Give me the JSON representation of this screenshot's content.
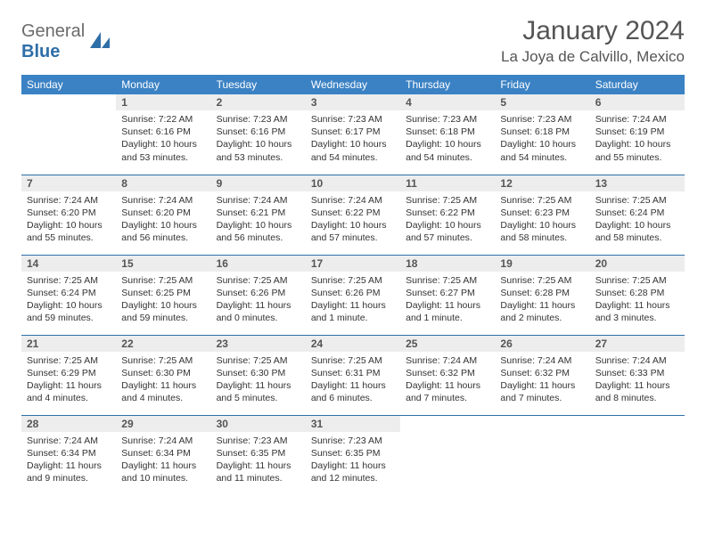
{
  "logo": {
    "text1": "General",
    "text2": "Blue"
  },
  "title": "January 2024",
  "location": "La Joya de Calvillo, Mexico",
  "colors": {
    "header_blue": "#3b82c4",
    "rule_blue": "#2f6fa8",
    "daynum_bg": "#ededed",
    "text_gray": "#555555",
    "logo_gray": "#6b6b6b"
  },
  "weekdays": [
    "Sunday",
    "Monday",
    "Tuesday",
    "Wednesday",
    "Thursday",
    "Friday",
    "Saturday"
  ],
  "weeks": [
    [
      null,
      {
        "n": "1",
        "sunrise": "7:22 AM",
        "sunset": "6:16 PM",
        "daylight": "10 hours and 53 minutes."
      },
      {
        "n": "2",
        "sunrise": "7:23 AM",
        "sunset": "6:16 PM",
        "daylight": "10 hours and 53 minutes."
      },
      {
        "n": "3",
        "sunrise": "7:23 AM",
        "sunset": "6:17 PM",
        "daylight": "10 hours and 54 minutes."
      },
      {
        "n": "4",
        "sunrise": "7:23 AM",
        "sunset": "6:18 PM",
        "daylight": "10 hours and 54 minutes."
      },
      {
        "n": "5",
        "sunrise": "7:23 AM",
        "sunset": "6:18 PM",
        "daylight": "10 hours and 54 minutes."
      },
      {
        "n": "6",
        "sunrise": "7:24 AM",
        "sunset": "6:19 PM",
        "daylight": "10 hours and 55 minutes."
      }
    ],
    [
      {
        "n": "7",
        "sunrise": "7:24 AM",
        "sunset": "6:20 PM",
        "daylight": "10 hours and 55 minutes."
      },
      {
        "n": "8",
        "sunrise": "7:24 AM",
        "sunset": "6:20 PM",
        "daylight": "10 hours and 56 minutes."
      },
      {
        "n": "9",
        "sunrise": "7:24 AM",
        "sunset": "6:21 PM",
        "daylight": "10 hours and 56 minutes."
      },
      {
        "n": "10",
        "sunrise": "7:24 AM",
        "sunset": "6:22 PM",
        "daylight": "10 hours and 57 minutes."
      },
      {
        "n": "11",
        "sunrise": "7:25 AM",
        "sunset": "6:22 PM",
        "daylight": "10 hours and 57 minutes."
      },
      {
        "n": "12",
        "sunrise": "7:25 AM",
        "sunset": "6:23 PM",
        "daylight": "10 hours and 58 minutes."
      },
      {
        "n": "13",
        "sunrise": "7:25 AM",
        "sunset": "6:24 PM",
        "daylight": "10 hours and 58 minutes."
      }
    ],
    [
      {
        "n": "14",
        "sunrise": "7:25 AM",
        "sunset": "6:24 PM",
        "daylight": "10 hours and 59 minutes."
      },
      {
        "n": "15",
        "sunrise": "7:25 AM",
        "sunset": "6:25 PM",
        "daylight": "10 hours and 59 minutes."
      },
      {
        "n": "16",
        "sunrise": "7:25 AM",
        "sunset": "6:26 PM",
        "daylight": "11 hours and 0 minutes."
      },
      {
        "n": "17",
        "sunrise": "7:25 AM",
        "sunset": "6:26 PM",
        "daylight": "11 hours and 1 minute."
      },
      {
        "n": "18",
        "sunrise": "7:25 AM",
        "sunset": "6:27 PM",
        "daylight": "11 hours and 1 minute."
      },
      {
        "n": "19",
        "sunrise": "7:25 AM",
        "sunset": "6:28 PM",
        "daylight": "11 hours and 2 minutes."
      },
      {
        "n": "20",
        "sunrise": "7:25 AM",
        "sunset": "6:28 PM",
        "daylight": "11 hours and 3 minutes."
      }
    ],
    [
      {
        "n": "21",
        "sunrise": "7:25 AM",
        "sunset": "6:29 PM",
        "daylight": "11 hours and 4 minutes."
      },
      {
        "n": "22",
        "sunrise": "7:25 AM",
        "sunset": "6:30 PM",
        "daylight": "11 hours and 4 minutes."
      },
      {
        "n": "23",
        "sunrise": "7:25 AM",
        "sunset": "6:30 PM",
        "daylight": "11 hours and 5 minutes."
      },
      {
        "n": "24",
        "sunrise": "7:25 AM",
        "sunset": "6:31 PM",
        "daylight": "11 hours and 6 minutes."
      },
      {
        "n": "25",
        "sunrise": "7:24 AM",
        "sunset": "6:32 PM",
        "daylight": "11 hours and 7 minutes."
      },
      {
        "n": "26",
        "sunrise": "7:24 AM",
        "sunset": "6:32 PM",
        "daylight": "11 hours and 7 minutes."
      },
      {
        "n": "27",
        "sunrise": "7:24 AM",
        "sunset": "6:33 PM",
        "daylight": "11 hours and 8 minutes."
      }
    ],
    [
      {
        "n": "28",
        "sunrise": "7:24 AM",
        "sunset": "6:34 PM",
        "daylight": "11 hours and 9 minutes."
      },
      {
        "n": "29",
        "sunrise": "7:24 AM",
        "sunset": "6:34 PM",
        "daylight": "11 hours and 10 minutes."
      },
      {
        "n": "30",
        "sunrise": "7:23 AM",
        "sunset": "6:35 PM",
        "daylight": "11 hours and 11 minutes."
      },
      {
        "n": "31",
        "sunrise": "7:23 AM",
        "sunset": "6:35 PM",
        "daylight": "11 hours and 12 minutes."
      },
      null,
      null,
      null
    ]
  ],
  "labels": {
    "sunrise": "Sunrise:",
    "sunset": "Sunset:",
    "daylight": "Daylight:"
  }
}
